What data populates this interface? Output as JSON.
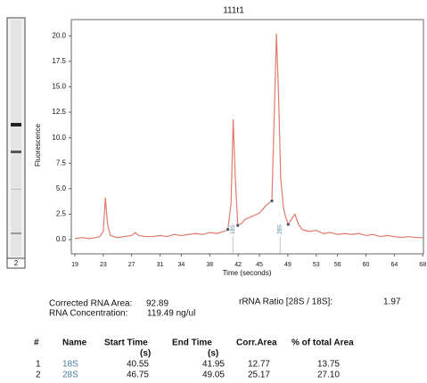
{
  "chart_data": {
    "type": "line",
    "title": "111t1",
    "x_label": "Time (seconds)",
    "y_label": "Fluorescence",
    "x": [
      19,
      20,
      21,
      22,
      22.5,
      23,
      23.3,
      23.6,
      24,
      25,
      26,
      27,
      27.5,
      28,
      29,
      30,
      31,
      32,
      33,
      34,
      35,
      36,
      37,
      38,
      39,
      40,
      40.55,
      41,
      41.3,
      41.6,
      41.95,
      42.5,
      43,
      44,
      45,
      45.5,
      46,
      46.75,
      47.4,
      47.7,
      48,
      48.4,
      48.7,
      49.05,
      49.5,
      50,
      50.5,
      51,
      52,
      53,
      54,
      55,
      56,
      57,
      58,
      59,
      60,
      61,
      62,
      63,
      64,
      65,
      66,
      67,
      68
    ],
    "series": [
      {
        "color": "#e07a6a",
        "values": [
          0.1,
          0.2,
          0.1,
          0.2,
          0.3,
          0.8,
          4.1,
          1.5,
          0.4,
          0.2,
          0.3,
          0.4,
          0.7,
          0.4,
          0.3,
          0.3,
          0.4,
          0.3,
          0.5,
          0.4,
          0.5,
          0.6,
          0.5,
          0.7,
          0.6,
          0.8,
          1.0,
          3.5,
          11.8,
          6.0,
          1.4,
          1.6,
          2.0,
          2.3,
          2.6,
          3.0,
          3.4,
          3.8,
          20.2,
          14.0,
          6.0,
          3.0,
          2.2,
          1.5,
          2.0,
          2.5,
          1.5,
          1.0,
          0.8,
          0.9,
          0.6,
          0.7,
          0.5,
          0.6,
          0.5,
          0.6,
          0.4,
          0.5,
          0.3,
          0.4,
          0.3,
          0.2,
          0.3,
          0.2,
          0.2
        ]
      }
    ],
    "annotations": [
      "18S",
      "28S"
    ],
    "xlim": [
      18.5,
      68.1
    ],
    "ylim": [
      -1.4,
      21.6
    ],
    "xticks": [
      19,
      23,
      27,
      31,
      34,
      38,
      42,
      45,
      49,
      53,
      56,
      60,
      64,
      68
    ],
    "yticks": [
      {
        "value": 0,
        "label": "0.0"
      },
      2.5,
      {
        "value": 5,
        "label": "5.0"
      },
      7.5,
      {
        "value": 10,
        "label": "10.0"
      },
      12.5,
      {
        "value": 15,
        "label": "15.0"
      },
      17.5,
      {
        "value": 20,
        "label": "20.0"
      }
    ]
  },
  "lane_label": "2",
  "summary": {
    "area_label": "Corrected RNA Area:",
    "area_value": "92.89",
    "conc_label": "RNA Concentration:",
    "conc_value": "119.49 ng/ul",
    "ratio_label": "rRNA Ratio [28S / 18S]:",
    "ratio_value": "1.97"
  },
  "table": {
    "header": [
      [
        "#"
      ],
      [
        "Name"
      ],
      [
        "Start Time",
        "(s)"
      ],
      [
        "End Time",
        "(s)"
      ],
      [
        "Corr.Area"
      ],
      [
        "% of total Area"
      ]
    ],
    "rows": [
      [
        "1",
        "18S",
        "40.55",
        "41.95",
        "12.77",
        "13.75"
      ],
      [
        "2",
        "28S",
        "46.75",
        "49.05",
        "25.17",
        "27.10"
      ]
    ]
  }
}
